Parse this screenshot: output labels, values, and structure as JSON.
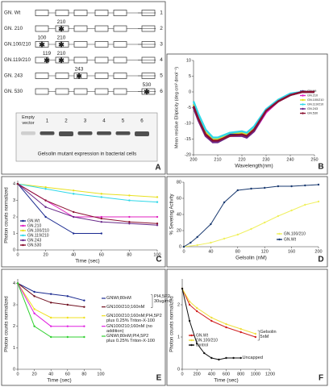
{
  "panel_a": {
    "label": "A",
    "rows": [
      {
        "name": "GN. Wt",
        "number": "1",
        "sites": []
      },
      {
        "name": "GN. 210",
        "number": "2",
        "sites": [
          "210"
        ]
      },
      {
        "name": "GN.100/210",
        "number": "3",
        "sites": [
          "100",
          "210"
        ]
      },
      {
        "name": "GN.119/210",
        "number": "4",
        "sites": [
          "119",
          "210"
        ]
      },
      {
        "name": "GN. 243",
        "number": "5",
        "sites": [
          "243"
        ]
      },
      {
        "name": "GN. 530",
        "number": "6",
        "sites": [
          "530"
        ]
      }
    ],
    "gel": {
      "lanes": [
        "Empty vector",
        "1",
        "2",
        "3",
        "4",
        "5",
        "6"
      ],
      "caption": "Gelsolin mutant expression in bacterial cells"
    }
  },
  "chart_data": [
    {
      "type": "line",
      "label": "B",
      "xlabel": "Wavelength(nm)",
      "ylabel": "Mean residue Ellipticity (deg cm² dmol⁻¹)",
      "legend": "right",
      "xlim": [
        200,
        250
      ],
      "ylim": [
        -20,
        10
      ],
      "xticks": [
        200,
        210,
        220,
        230,
        240,
        250
      ],
      "yticks": [
        -20,
        -15,
        -10,
        -5,
        0,
        5,
        10
      ],
      "series": [
        {
          "name": "GN.Wt",
          "color": "#1f2a80",
          "x": [
            200,
            202,
            205,
            208,
            210,
            215,
            220,
            222,
            225,
            230,
            235,
            240,
            245,
            250
          ],
          "values": [
            -4,
            -8,
            -13,
            -15,
            -15,
            -13.5,
            -13.5,
            -14,
            -12,
            -6,
            -3,
            -1,
            0,
            0
          ]
        },
        {
          "name": "GN.210",
          "color": "#e020c0",
          "x": [
            200,
            202,
            205,
            208,
            210,
            215,
            220,
            222,
            225,
            230,
            235,
            240,
            245,
            250
          ],
          "values": [
            -5,
            -9,
            -14,
            -16,
            -15.5,
            -14,
            -14,
            -14.5,
            -12.5,
            -6.5,
            -3,
            -1,
            0,
            0
          ]
        },
        {
          "name": "GN.100/210",
          "color": "#e8e020",
          "x": [
            200,
            202,
            205,
            208,
            210,
            215,
            220,
            222,
            225,
            230,
            235,
            240,
            245,
            250
          ],
          "values": [
            -4,
            -8,
            -13,
            -15,
            -15,
            -13,
            -13,
            -13.5,
            -11.5,
            -6,
            -2.5,
            -1,
            0,
            0
          ]
        },
        {
          "name": "GN.119/210",
          "color": "#30d8e8",
          "x": [
            200,
            202,
            205,
            208,
            210,
            215,
            220,
            222,
            225,
            230,
            235,
            240,
            245,
            250
          ],
          "values": [
            -3,
            -7,
            -12,
            -14.5,
            -14.5,
            -13,
            -12.5,
            -13,
            -11,
            -5.5,
            -2.5,
            -0.5,
            0,
            0
          ]
        },
        {
          "name": "GN.243",
          "color": "#6a2a8a",
          "x": [
            200,
            202,
            205,
            208,
            210,
            215,
            220,
            222,
            225,
            230,
            235,
            240,
            245,
            250
          ],
          "values": [
            -5,
            -9,
            -14,
            -16,
            -16,
            -14,
            -14,
            -14.5,
            -12.5,
            -6,
            -3,
            -1,
            0,
            0
          ]
        },
        {
          "name": "GN.530",
          "color": "#8a1030",
          "x": [
            200,
            202,
            205,
            208,
            210,
            215,
            220,
            222,
            225,
            230,
            235,
            240,
            245,
            250
          ],
          "values": [
            -4.5,
            -8.5,
            -13.5,
            -15.5,
            -15.5,
            -14,
            -13.5,
            -14,
            -12,
            -6,
            -3,
            -1,
            0,
            0
          ]
        }
      ]
    },
    {
      "type": "line",
      "label": "C",
      "xlabel": "Time (sec)",
      "ylabel": "Photon counts normalized",
      "legend": "lower left",
      "xlim": [
        0,
        100
      ],
      "ylim": [
        0,
        4.2
      ],
      "xticks": [
        0,
        20,
        40,
        60,
        80,
        100
      ],
      "yticks": [
        0,
        1,
        2,
        3,
        4
      ],
      "series": [
        {
          "name": "GN.Wt",
          "color": "#1a2a90",
          "x": [
            0,
            20,
            40,
            60
          ],
          "values": [
            4,
            2,
            1,
            1
          ]
        },
        {
          "name": "GN.210",
          "color": "#e020c0",
          "x": [
            0,
            20,
            40,
            60,
            80,
            100
          ],
          "values": [
            4,
            3,
            2,
            2,
            2,
            2
          ]
        },
        {
          "name": "GN.100/210",
          "color": "#e8e020",
          "x": [
            0,
            20,
            40,
            60,
            80,
            100
          ],
          "values": [
            4,
            3.8,
            3.6,
            3.4,
            3.3,
            3.2
          ]
        },
        {
          "name": "GN.119/210",
          "color": "#30d8e8",
          "x": [
            0,
            20,
            40,
            60,
            80,
            100
          ],
          "values": [
            4,
            3.7,
            3.4,
            3.2,
            3,
            2.9
          ]
        },
        {
          "name": "GN.243",
          "color": "#6a2a8a",
          "x": [
            0,
            20,
            40,
            60,
            80,
            100
          ],
          "values": [
            4,
            2.6,
            2,
            1.7,
            1.6,
            1.5
          ]
        },
        {
          "name": "GN.530",
          "color": "#8a1030",
          "x": [
            0,
            20,
            40,
            60,
            80,
            100
          ],
          "values": [
            4,
            3,
            2.3,
            1.9,
            1.7,
            1.6
          ]
        }
      ]
    },
    {
      "type": "line",
      "label": "D",
      "xlabel": "Gelsolin (nM)",
      "ylabel": "% Severing Activity",
      "legend": "lower right",
      "xlim": [
        0,
        200
      ],
      "ylim": [
        0,
        80
      ],
      "xticks": [
        0,
        40,
        80,
        120,
        160,
        200
      ],
      "yticks": [
        0,
        20,
        40,
        60,
        80
      ],
      "series": [
        {
          "name": "GN.100/210",
          "color": "#f0f060",
          "x": [
            0,
            20,
            40,
            60,
            80,
            100,
            120,
            140,
            160,
            180,
            200
          ],
          "values": [
            0,
            2,
            5,
            10,
            15,
            22,
            30,
            38,
            45,
            52,
            56
          ]
        },
        {
          "name": "GN.Wt",
          "color": "#1a3a70",
          "x": [
            0,
            10,
            20,
            40,
            60,
            80,
            100,
            120,
            140,
            160,
            180,
            200
          ],
          "values": [
            0,
            5,
            12,
            28,
            55,
            70,
            72,
            73,
            75,
            75,
            76,
            77
          ]
        }
      ]
    },
    {
      "type": "line",
      "label": "E",
      "xlabel": "Time (sec)",
      "ylabel": "Photon counts normalized",
      "legend": "right",
      "annotations": [
        "PI4,5P2 30ug/ml"
      ],
      "xlim": [
        0,
        100
      ],
      "ylim": [
        0,
        4.2
      ],
      "xticks": [
        0,
        20,
        40,
        60,
        80,
        100
      ],
      "yticks": [
        0,
        1,
        2,
        3,
        4
      ],
      "series": [
        {
          "name": "GNWt;80nM",
          "color": "#1a2a90",
          "x": [
            0,
            20,
            40,
            60,
            80
          ],
          "values": [
            4,
            3.6,
            3.5,
            3.4,
            3.2
          ]
        },
        {
          "name": "GN100/210;160nM",
          "color": "#701020",
          "x": [
            0,
            20,
            40,
            60,
            80
          ],
          "values": [
            4,
            3.4,
            3.1,
            3,
            2.9
          ]
        },
        {
          "name": "GN100/210;160nM;PI4,5P2 plus 0.25% Triton-X-100",
          "color": "#f0e020",
          "x": [
            0,
            20,
            40,
            60,
            80
          ],
          "values": [
            4,
            2.8,
            2.4,
            2.4,
            2.4
          ]
        },
        {
          "name": "GN100/210;160nM (no addition)",
          "color": "#e020e0",
          "x": [
            0,
            20,
            40,
            60,
            80
          ],
          "values": [
            4,
            2.6,
            2,
            2,
            2
          ]
        },
        {
          "name": "GNWt;80nM;PI4,5P2 plus 0.25% Triton-X-100",
          "color": "#30d030",
          "x": [
            0,
            20,
            40,
            60,
            80
          ],
          "values": [
            4,
            2,
            1.5,
            1.5,
            1.5
          ]
        }
      ]
    },
    {
      "type": "line",
      "label": "F",
      "xlabel": "Time (sec)",
      "ylabel": "Photon counts normalized",
      "legend": "upper right",
      "annotations": [
        "Gelsolin 5nM",
        "Uncapped"
      ],
      "xlim": [
        0,
        1200
      ],
      "ylim": [
        0,
        2.8
      ],
      "xticks": [
        0,
        200,
        400,
        600,
        800,
        1000,
        1200
      ],
      "yticks": [
        0,
        1,
        2
      ],
      "series": [
        {
          "name": "GN.Wt",
          "color": "#d02020",
          "x": [
            0,
            100,
            200,
            400,
            600,
            800,
            1000
          ],
          "values": [
            2.5,
            2,
            1.8,
            1.5,
            1.3,
            1.15,
            1
          ]
        },
        {
          "name": "GN.100/210",
          "color": "#f0e040",
          "x": [
            0,
            100,
            200,
            400,
            600,
            800,
            1000
          ],
          "values": [
            2.5,
            2.1,
            1.9,
            1.6,
            1.4,
            1.25,
            1.1
          ]
        },
        {
          "name": "control",
          "color": "#111111",
          "x": [
            0,
            100,
            200,
            300,
            400,
            500,
            600,
            700,
            800
          ],
          "values": [
            2.5,
            1.5,
            0.8,
            0.5,
            0.35,
            0.3,
            0.35,
            0.35,
            0.35
          ]
        }
      ]
    }
  ]
}
